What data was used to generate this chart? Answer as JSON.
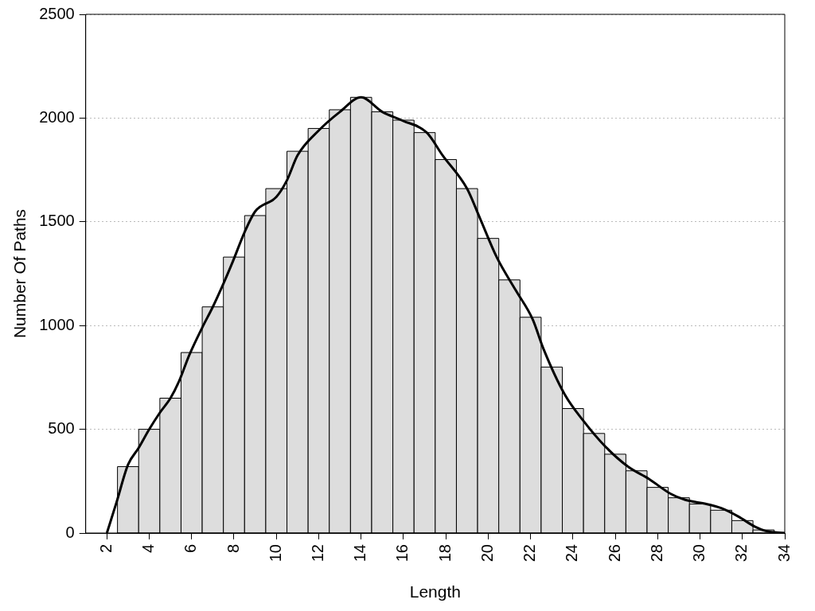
{
  "chart_data": {
    "type": "histogram",
    "xlabel": "Length",
    "ylabel": "Number Of Paths",
    "xlim": [
      1,
      34
    ],
    "xticks": [
      2,
      4,
      6,
      8,
      10,
      12,
      14,
      16,
      18,
      20,
      22,
      24,
      26,
      28,
      30,
      32,
      34
    ],
    "ylim": [
      0,
      2500
    ],
    "yticks": [
      0,
      500,
      1000,
      1500,
      2000,
      2500
    ],
    "grid": "y",
    "legend": false,
    "series": [
      {
        "color": "#dddddd",
        "bins": [
          2.5,
          3.5,
          4.5,
          5.5,
          6.5,
          7.5,
          8.5,
          9.5,
          10.5,
          11.5,
          12.5,
          13.5,
          14.5,
          15.5,
          16.5,
          17.5,
          18.5,
          19.5,
          20.5,
          21.5,
          22.5,
          23.5,
          24.5,
          25.5,
          26.5,
          27.5,
          28.5,
          29.5,
          30.5,
          31.5,
          32.5,
          33.5
        ],
        "values": [
          320,
          500,
          650,
          870,
          1090,
          1330,
          1530,
          1660,
          1840,
          1950,
          2040,
          2100,
          2030,
          1990,
          1930,
          1800,
          1660,
          1420,
          1220,
          1040,
          800,
          600,
          480,
          380,
          300,
          220,
          170,
          140,
          110,
          60,
          15
        ]
      },
      {
        "type": "line",
        "color": "#000000",
        "marker": "none",
        "line_style": "solid",
        "x": [
          2,
          2.46,
          3,
          3.5,
          4,
          4.5,
          5,
          5.4,
          5.9,
          6.5,
          7,
          7.45,
          7.95,
          8.5,
          9,
          10,
          10.5,
          11,
          12,
          13,
          14,
          15,
          15.9,
          17.1,
          17.85,
          19,
          19.6,
          20.4,
          21.3,
          22.1,
          22.6,
          23.6,
          24.5,
          25.5,
          26.6,
          27.6,
          28.6,
          29.3,
          30.3,
          31,
          31.8,
          32.6,
          33.1,
          34
        ],
        "values": [
          0,
          150,
          330,
          410,
          500,
          580,
          650,
          730,
          860,
          990,
          1090,
          1190,
          1310,
          1450,
          1550,
          1620,
          1700,
          1820,
          1940,
          2030,
          2100,
          2030,
          1990,
          1930,
          1820,
          1660,
          1520,
          1330,
          1170,
          1030,
          890,
          670,
          540,
          420,
          320,
          260,
          190,
          160,
          140,
          120,
          80,
          30,
          10,
          0
        ]
      }
    ]
  }
}
